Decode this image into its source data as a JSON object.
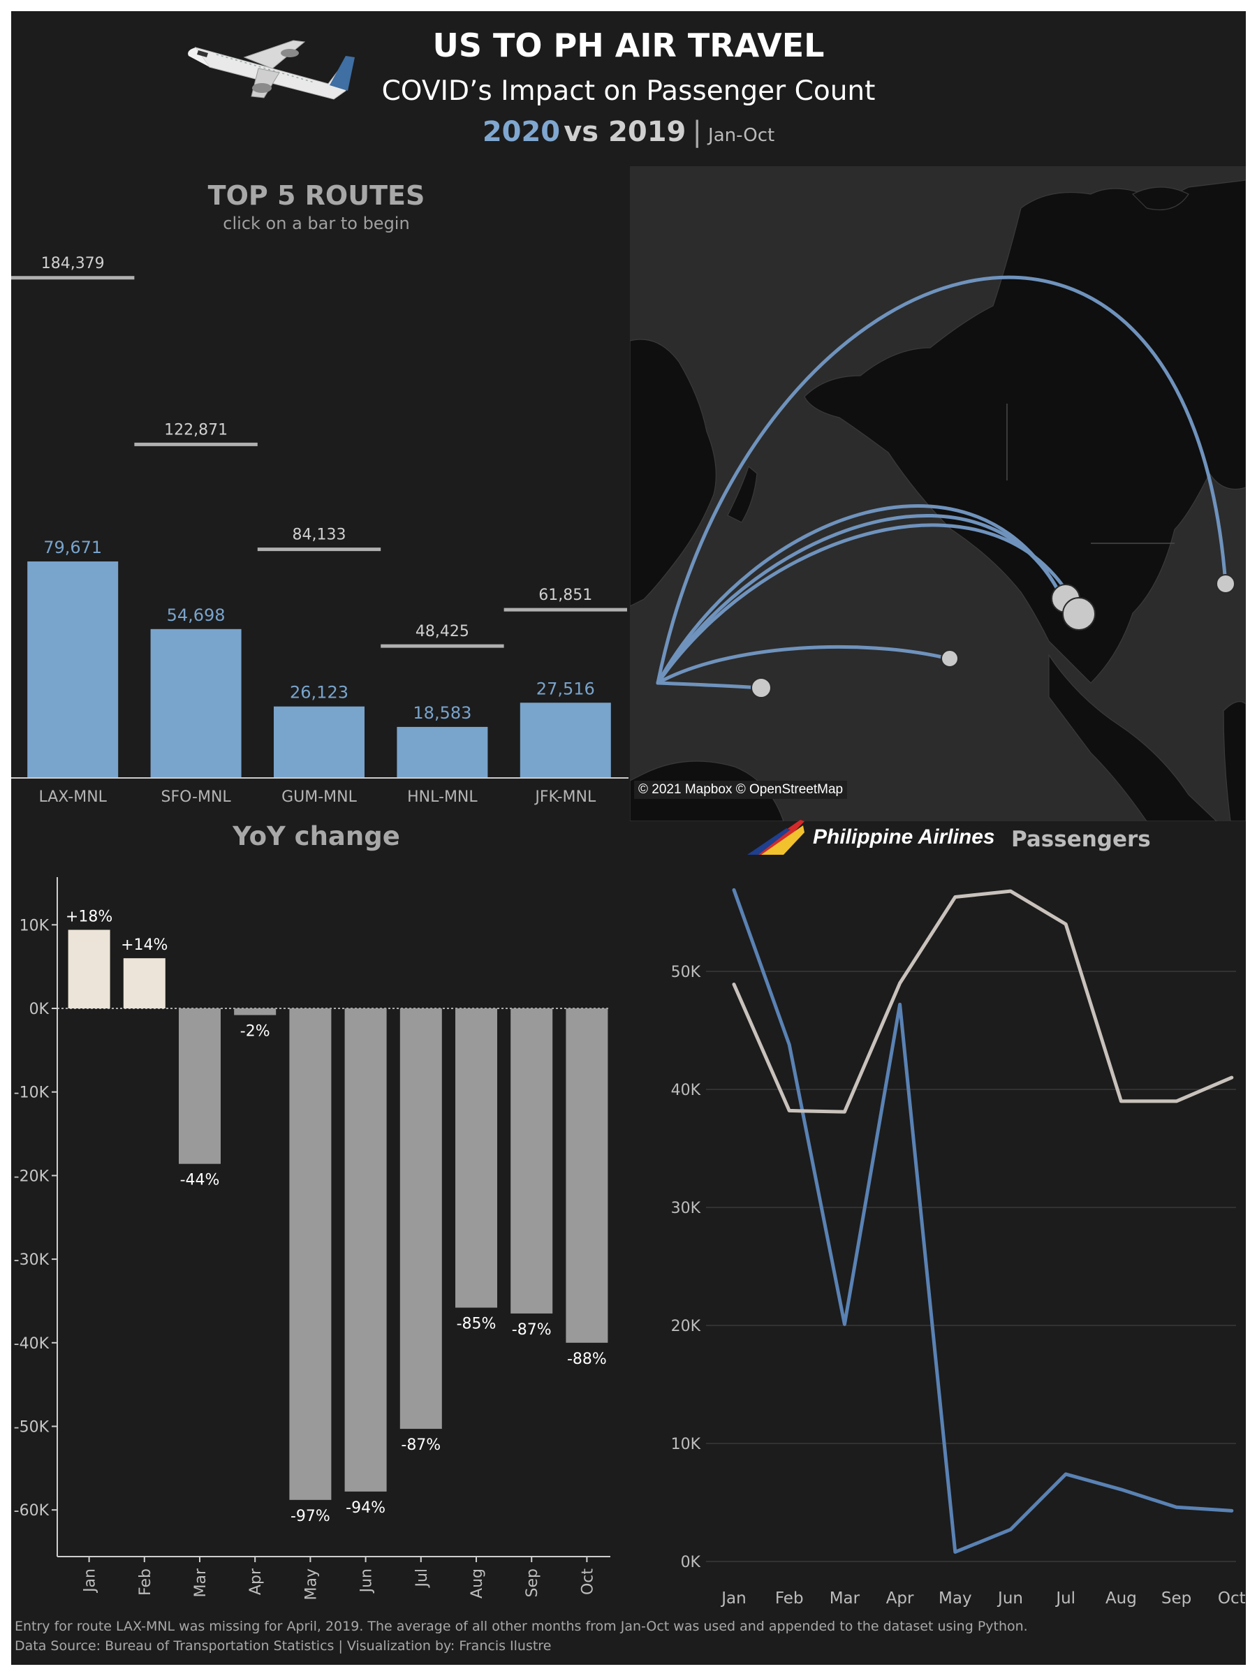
{
  "header": {
    "title": "US TO PH AIR TRAVEL",
    "subtitle": "COVID’s Impact on Passenger Count",
    "year_current": "2020",
    "vs_text": "vs 2019",
    "separator": "|",
    "period": "Jan-Oct",
    "colors": {
      "current": "#7fa7d0",
      "previous": "#bbbbbb"
    },
    "icon": "airplane-icon"
  },
  "routes_chart": {
    "title": "TOP 5 ROUTES",
    "hint": "click on a bar to begin",
    "chart_data": {
      "type": "bar",
      "categories": [
        "LAX-MNL",
        "SFO-MNL",
        "GUM-MNL",
        "HNL-MNL",
        "JFK-MNL"
      ],
      "series": [
        {
          "values": [
            79671,
            54698,
            26123,
            18583,
            27516
          ],
          "labels": [
            "79,671",
            "54,698",
            "26,123",
            "18,583",
            "27,516"
          ],
          "color": "#79a4cc"
        },
        {
          "values": [
            184379,
            122871,
            84133,
            48425,
            61851
          ],
          "labels": [
            "184,379",
            "122,871",
            "84,133",
            "48,425",
            "61,851"
          ],
          "color": "#b0b0b0"
        }
      ],
      "ylim": [
        0,
        190000
      ]
    }
  },
  "map": {
    "attribution": "© 2021 Mapbox © OpenStreetMap",
    "origin": "MNL",
    "destinations": [
      "JFK",
      "SFO",
      "LAX",
      "HNL",
      "GUM"
    ],
    "colors": {
      "arc": "#6f93bd",
      "land": "#0f0f0f",
      "water": "#2c2c2c",
      "marker": "#c9c9c9"
    }
  },
  "yoy_chart": {
    "title": "YoY change",
    "chart_data": {
      "type": "bar",
      "categories": [
        "Jan",
        "Feb",
        "Mar",
        "Apr",
        "May",
        "Jun",
        "Jul",
        "Aug",
        "Sep",
        "Oct"
      ],
      "values": [
        9400,
        6000,
        -18600,
        -800,
        -58800,
        -57800,
        -50300,
        -35800,
        -36500,
        -40000
      ],
      "labels": [
        "+18%",
        "+14%",
        "-44%",
        "-2%",
        "-97%",
        "-94%",
        "-87%",
        "-85%",
        "-87%",
        "-88%"
      ],
      "ylim": [
        -65000,
        15000
      ],
      "yticks": [
        10000,
        0,
        -10000,
        -20000,
        -30000,
        -40000,
        -50000,
        -60000
      ],
      "ytick_labels": [
        "10K",
        "0K",
        "-10K",
        "-20K",
        "-30K",
        "-40K",
        "-50K",
        "-60K"
      ],
      "colors": {
        "positive": "#ece4d8",
        "negative": "#9a9a9a"
      }
    }
  },
  "pal_chart": {
    "brand": "Philippine Airlines",
    "title": "Passengers",
    "chart_data": {
      "type": "line",
      "x": [
        "Jan",
        "Feb",
        "Mar",
        "Apr",
        "May",
        "Jun",
        "Jul",
        "Aug",
        "Sep",
        "Oct"
      ],
      "series": [
        {
          "values": [
            56900,
            43800,
            20100,
            47200,
            800,
            2700,
            7400,
            6100,
            4600,
            4300
          ],
          "color": "#5a82b4"
        },
        {
          "values": [
            48900,
            38200,
            38100,
            49000,
            56300,
            56800,
            54000,
            39000,
            39000,
            41000
          ],
          "color": "#c9c2bc"
        }
      ],
      "ylim": [
        0,
        60000
      ],
      "yticks": [
        0,
        10000,
        20000,
        30000,
        40000,
        50000
      ],
      "ytick_labels": [
        "0K",
        "10K",
        "20K",
        "30K",
        "40K",
        "50K"
      ],
      "grid": true
    }
  },
  "footer": {
    "note": "Entry for route LAX-MNL was missing for April, 2019. The average of all other months from Jan-Oct was used and appended to the dataset using Python.",
    "source": "Data Source: Bureau of Transportation Statistics | Visualization by: Francis Ilustre"
  }
}
